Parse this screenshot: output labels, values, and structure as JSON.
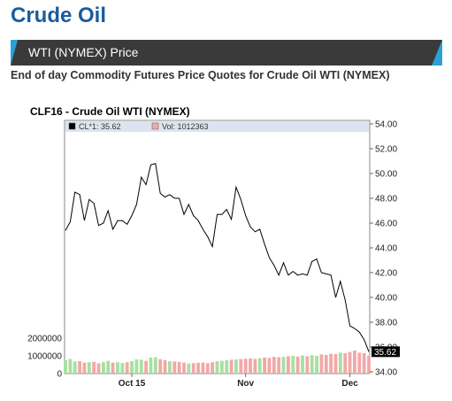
{
  "page": {
    "title": "Crude Oil",
    "banner_label": "WTI (NYMEX) Price",
    "subtitle": "End of day Commodity Futures Price Quotes for Crude Oil WTI (NYMEX)"
  },
  "colors": {
    "title": "#1a5c9e",
    "banner_bg": "#3a3a3a",
    "banner_accent": "#2aa0d8",
    "legend_bg": "#dde4f0",
    "price_line": "#000000",
    "volume_up": "#a6e0a0",
    "volume_down": "#f2a8a8",
    "last_price_tag": "#000000"
  },
  "chart_data": {
    "type": "line",
    "title": "CLF16 - Crude Oil WTI (NYMEX)",
    "legend": [
      {
        "label": "CL*1: 35.62",
        "color": "#000000"
      },
      {
        "label": "Vol: 1012363",
        "color": "#f2a8a8"
      }
    ],
    "last_price_label": "35.62",
    "x_ticks": [
      "Oct 15",
      "Nov",
      "Dec"
    ],
    "y_ticks": [
      "54.00",
      "52.00",
      "50.00",
      "48.00",
      "46.00",
      "44.00",
      "42.00",
      "40.00",
      "38.00",
      "36.00",
      "34.00"
    ],
    "ylim": [
      34,
      54
    ],
    "volume_ticks": [
      "2000000",
      "1000000",
      "0"
    ],
    "volume_ylim": [
      0,
      2000000
    ],
    "grid": false,
    "series": [
      {
        "name": "CL*1",
        "values": [
          45.4,
          46.1,
          48.5,
          48.3,
          46.2,
          47.9,
          47.6,
          45.8,
          46.0,
          47.0,
          45.5,
          46.2,
          46.2,
          45.9,
          46.6,
          47.5,
          49.7,
          49.1,
          50.7,
          50.8,
          48.4,
          48.1,
          48.3,
          48.0,
          48.0,
          46.7,
          47.5,
          46.6,
          46.2,
          45.5,
          44.9,
          44.1,
          46.7,
          46.7,
          47.1,
          46.3,
          48.9,
          47.9,
          46.6,
          45.7,
          45.3,
          45.5,
          44.3,
          43.2,
          42.6,
          41.8,
          42.8,
          41.8,
          42.1,
          41.8,
          41.9,
          41.8,
          42.9,
          43.1,
          42.0,
          41.9,
          41.8,
          40.0,
          41.3,
          39.8,
          37.7,
          37.5,
          37.2,
          36.6,
          35.62
        ]
      },
      {
        "name": "Vol",
        "values": [
          750000,
          820000,
          680000,
          700000,
          620000,
          640000,
          660000,
          580000,
          650000,
          720000,
          620000,
          640000,
          600000,
          640000,
          700000,
          800000,
          780000,
          720000,
          900000,
          920000,
          810000,
          760000,
          700000,
          680000,
          660000,
          620000,
          560000,
          590000,
          610000,
          620000,
          580000,
          640000,
          700000,
          720000,
          750000,
          780000,
          800000,
          820000,
          840000,
          860000,
          830000,
          870000,
          900000,
          880000,
          950000,
          920000,
          940000,
          980000,
          1000000,
          960000,
          1020000,
          980000,
          1040000,
          1000000,
          1080000,
          1050000,
          1120000,
          1100000,
          1180000,
          1150000,
          1220000,
          1300000,
          1180000,
          1150000,
          1012363
        ],
        "up": [
          true,
          true,
          true,
          false,
          false,
          true,
          false,
          false,
          true,
          true,
          false,
          true,
          true,
          false,
          true,
          true,
          true,
          false,
          true,
          true,
          false,
          false,
          true,
          false,
          false,
          false,
          true,
          false,
          false,
          false,
          false,
          false,
          true,
          true,
          true,
          false,
          true,
          false,
          false,
          false,
          false,
          true,
          false,
          false,
          false,
          false,
          true,
          false,
          true,
          false,
          true,
          false,
          true,
          true,
          false,
          false,
          false,
          false,
          true,
          false,
          false,
          false,
          false,
          false,
          false
        ]
      }
    ]
  }
}
